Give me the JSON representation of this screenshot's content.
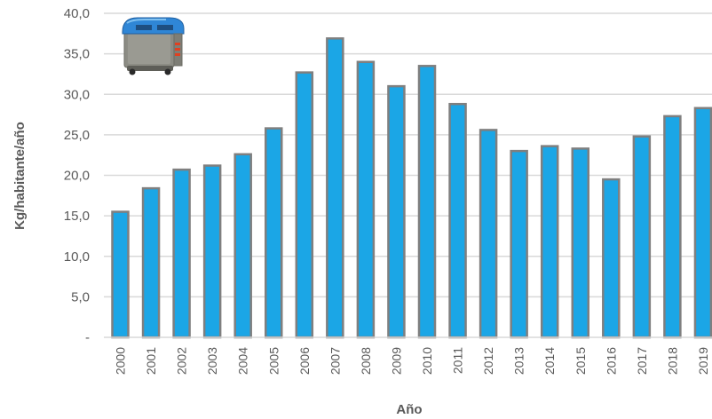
{
  "chart_data": {
    "type": "bar",
    "title": "",
    "xlabel": "Año",
    "ylabel": "Kg/habitante/año",
    "ylim": [
      0,
      40
    ],
    "yticks": [
      {
        "value": 0,
        "label": "-"
      },
      {
        "value": 5,
        "label": "5,0"
      },
      {
        "value": 10,
        "label": "10,0"
      },
      {
        "value": 15,
        "label": "15,0"
      },
      {
        "value": 20,
        "label": "20,0"
      },
      {
        "value": 25,
        "label": "25,0"
      },
      {
        "value": 30,
        "label": "30,0"
      },
      {
        "value": 35,
        "label": "35,0"
      },
      {
        "value": 40,
        "label": "40,0"
      }
    ],
    "categories": [
      "2000",
      "2001",
      "2002",
      "2003",
      "2004",
      "2005",
      "2006",
      "2007",
      "2008",
      "2009",
      "2010",
      "2011",
      "2012",
      "2013",
      "2014",
      "2015",
      "2016",
      "2017",
      "2018",
      "2019"
    ],
    "values": [
      15.5,
      18.4,
      20.7,
      21.2,
      22.6,
      25.8,
      32.7,
      36.9,
      34.0,
      31.0,
      33.5,
      28.8,
      25.6,
      23.0,
      23.6,
      23.3,
      19.5,
      24.8,
      27.3,
      28.3
    ],
    "grid": true,
    "legend": "none",
    "bar_fill": "#1BA6E6",
    "bar_stroke": "#7F7F7F",
    "grid_color": "#D9D9D9",
    "icon": "waste-container-icon"
  }
}
